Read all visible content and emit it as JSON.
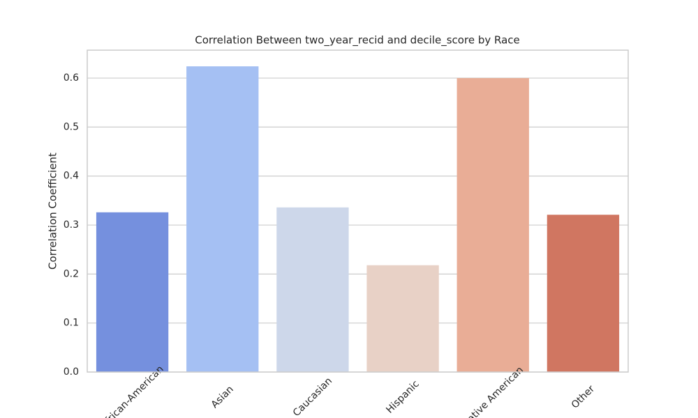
{
  "chart_data": {
    "type": "bar",
    "title": "Correlation Between two_year_recid and decile_score by Race",
    "y_label": "Correlation Coefficient",
    "categories": [
      "African-American",
      "Asian",
      "Caucasian",
      "Hispanic",
      "Native American",
      "Other"
    ],
    "values": [
      0.326,
      0.624,
      0.336,
      0.218,
      0.6,
      0.321
    ],
    "colors": [
      "#7590de",
      "#a5c0f3",
      "#cdd7ea",
      "#e8d1c6",
      "#e9ad96",
      "#d07661"
    ],
    "ylim": [
      0,
      0.657
    ],
    "yticks": [
      {
        "value": 0,
        "label": "0.0"
      },
      0.1,
      0.2,
      0.3,
      0.4,
      0.5,
      0.6
    ],
    "grid": true
  }
}
